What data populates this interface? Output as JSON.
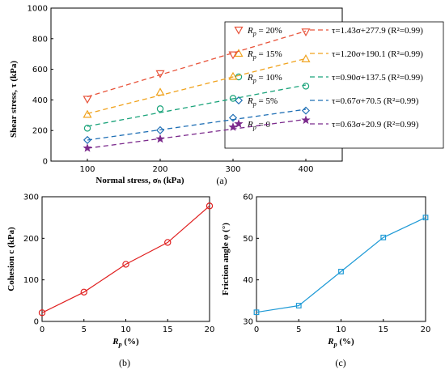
{
  "chart_data": [
    {
      "panel": "(a)",
      "type": "scatter",
      "xlabel": "Normal stress, σₙ (kPa)",
      "ylabel": "Shear stress, τ (kPa)",
      "xlim": [
        50,
        450
      ],
      "ylim": [
        0,
        1000
      ],
      "xticks": [
        "100",
        "200",
        "300",
        "400"
      ],
      "yticks": [
        "0",
        "200",
        "400",
        "600",
        "800",
        "1000"
      ],
      "x": [
        100,
        200,
        300,
        400
      ],
      "legend_position": "right",
      "series": [
        {
          "name": "Rp = 20%",
          "marker": "triangle-down",
          "color": "#e8533a",
          "values": [
            405,
            572,
            695,
            845
          ],
          "fit": "τ=1.43σ+277.9 (R²=0.99)",
          "slope": 1.43,
          "intercept": 277.9
        },
        {
          "name": "Rp = 15%",
          "marker": "triangle-up",
          "color": "#f0a21c",
          "values": [
            305,
            450,
            553,
            668
          ],
          "fit": "τ=1.20σ+190.1 (R²=0.99)",
          "slope": 1.2,
          "intercept": 190.1
        },
        {
          "name": "Rp = 10%",
          "marker": "circle",
          "color": "#1aa37a",
          "values": [
            215,
            342,
            410,
            490
          ],
          "fit": "τ=0.90σ+137.5 (R²=0.99)",
          "slope": 0.9,
          "intercept": 137.5
        },
        {
          "name": "Rp = 5%",
          "marker": "diamond",
          "color": "#1f6fb5",
          "values": [
            138,
            202,
            283,
            330
          ],
          "fit": "τ=0.67σ+70.5 (R²=0.99)",
          "slope": 0.67,
          "intercept": 70.5
        },
        {
          "name": "Rp = 0",
          "marker": "star",
          "color": "#7b2a8c",
          "values": [
            85,
            145,
            222,
            268
          ],
          "fit": "τ=0.63σ+20.9 (R²=0.99)",
          "slope": 0.63,
          "intercept": 20.9
        }
      ]
    },
    {
      "panel": "(b)",
      "type": "line",
      "xlabel": "Rp (%)",
      "ylabel": "Cohesion c (kPa)",
      "xlim": [
        0,
        20
      ],
      "ylim": [
        0,
        300
      ],
      "xticks": [
        "0",
        "5",
        "10",
        "15",
        "20"
      ],
      "yticks": [
        "0",
        "100",
        "200",
        "300"
      ],
      "color": "#e02020",
      "marker": "circle",
      "x": [
        0,
        5,
        10,
        15,
        20
      ],
      "values": [
        20.9,
        70.5,
        137.5,
        190.1,
        277.9
      ]
    },
    {
      "panel": "(c)",
      "type": "line",
      "xlabel": "Rp (%)",
      "ylabel": "Friction angle φ (°)",
      "xlim": [
        0,
        20
      ],
      "ylim": [
        30,
        60
      ],
      "xticks": [
        "0",
        "5",
        "10",
        "15",
        "20"
      ],
      "yticks": [
        "30",
        "40",
        "50",
        "60"
      ],
      "color": "#1e9ad6",
      "marker": "square",
      "x": [
        0,
        5,
        10,
        15,
        20
      ],
      "values": [
        32.2,
        33.8,
        42.0,
        50.2,
        55.0
      ]
    }
  ]
}
